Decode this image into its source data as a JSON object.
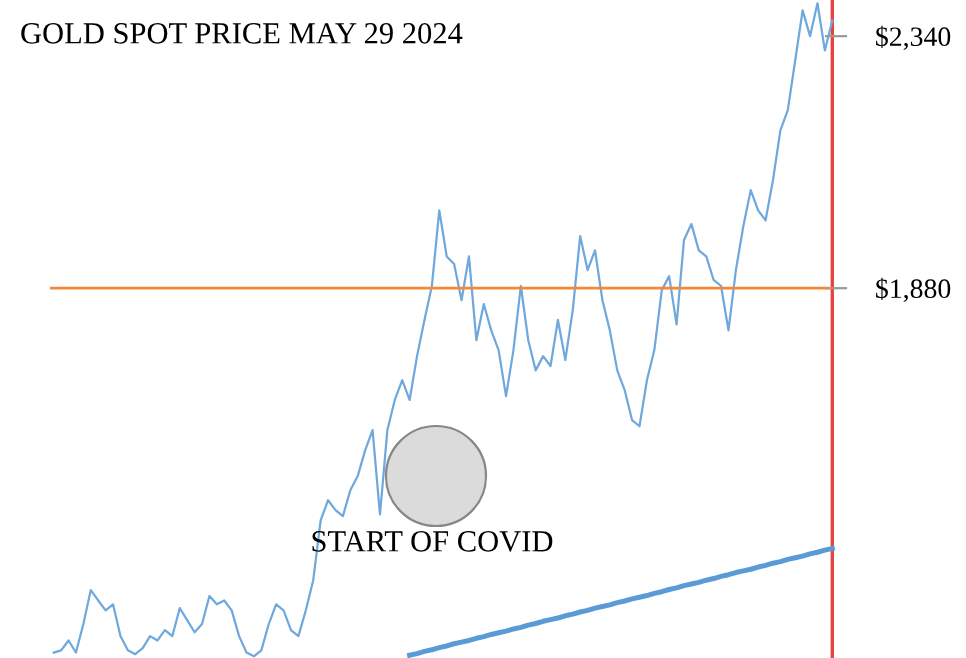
{
  "chart_data": {
    "type": "line",
    "title": "GOLD SPOT PRICE MAY 29 2024",
    "annotations": [
      "START OF COVID"
    ],
    "categories": [
      null,
      null,
      null,
      null,
      null,
      null,
      null,
      null,
      null,
      null,
      null,
      null,
      null,
      null,
      null,
      null,
      null,
      null,
      null,
      null,
      null,
      null,
      null,
      null,
      null,
      null,
      null,
      null,
      null,
      null,
      null,
      null,
      null,
      null,
      null,
      null,
      null,
      null,
      null,
      null,
      null,
      null,
      null,
      null,
      null,
      null,
      null,
      null,
      null,
      null,
      null,
      null,
      null,
      null,
      null,
      null,
      null,
      null,
      null,
      null,
      null,
      null,
      null,
      null,
      null,
      null,
      null,
      null,
      null,
      null,
      null,
      null,
      null,
      null,
      null,
      null,
      null,
      null,
      null,
      null,
      null,
      null,
      null,
      null,
      null,
      null,
      null,
      null,
      null,
      null,
      null,
      null,
      null,
      null,
      null,
      null,
      null,
      null,
      null,
      null,
      null,
      null,
      null,
      null,
      null,
      null
    ],
    "series": [
      {
        "color": "#6fa8dc",
        "values": [
          1215,
          1219,
          1237,
          1215,
          1267,
          1329,
          1310,
          1292,
          1303,
          1245,
          1219,
          1212,
          1223,
          1245,
          1237,
          1256,
          1245,
          1296,
          1274,
          1252,
          1267,
          1318,
          1303,
          1310,
          1292,
          1245,
          1215,
          1208,
          1219,
          1267,
          1303,
          1292,
          1256,
          1245,
          1292,
          1347,
          1456,
          1493,
          1475,
          1464,
          1511,
          1537,
          1584,
          1621,
          1467,
          1621,
          1676,
          1712,
          1676,
          1756,
          1822,
          1884,
          2022,
          1938,
          1924,
          1858,
          1938,
          1785,
          1851,
          1803,
          1767,
          1683,
          1767,
          1884,
          1785,
          1730,
          1756,
          1738,
          1822,
          1749,
          1840,
          1975,
          1913,
          1949,
          1858,
          1803,
          1730,
          1694,
          1639,
          1628,
          1712,
          1767,
          1876,
          1902,
          1814,
          1968,
          1997,
          1949,
          1938,
          1895,
          1884,
          1803,
          1913,
          1993,
          2059,
          2022,
          2004,
          2077,
          2168,
          2205,
          2296,
          2387,
          2340,
          2400,
          2314,
          2369
        ]
      },
      {
        "color": "#5b9bd5",
        "type": "line",
        "values": [
          null,
          null,
          null,
          null,
          null,
          null,
          null,
          null,
          null,
          null,
          null,
          null,
          null,
          null,
          null,
          null,
          null,
          null,
          null,
          null,
          null,
          null,
          null,
          null,
          null,
          null,
          null,
          null,
          null,
          null,
          null,
          null,
          null,
          null,
          null,
          null,
          null,
          null,
          null,
          null,
          null,
          null,
          null,
          null,
          null,
          null,
          null,
          null,
          1210,
          1213,
          1217,
          1220,
          1224,
          1227,
          1231,
          1234,
          1237,
          1241,
          1244,
          1248,
          1251,
          1254,
          1258,
          1261,
          1265,
          1268,
          1272,
          1275,
          1278,
          1282,
          1285,
          1289,
          1292,
          1296,
          1299,
          1302,
          1306,
          1309,
          1313,
          1316,
          1319,
          1323,
          1326,
          1330,
          1333,
          1337,
          1340,
          1343,
          1347,
          1350,
          1354,
          1357,
          1361,
          1364,
          1367,
          1371,
          1374,
          1378,
          1381,
          1385,
          1388,
          1391,
          1395,
          1398,
          1402,
          1405
        ]
      }
    ],
    "ylim": [
      1205,
      2406
    ],
    "yticks": [
      {
        "value": 2340,
        "label": "$2,340"
      },
      {
        "value": 1880,
        "label": "$1,880"
      }
    ],
    "ref_lines": [
      {
        "axis": "y",
        "value": 1880,
        "color": "#f4883a"
      }
    ],
    "tick_labels": "y",
    "grid": false,
    "legend": false
  }
}
